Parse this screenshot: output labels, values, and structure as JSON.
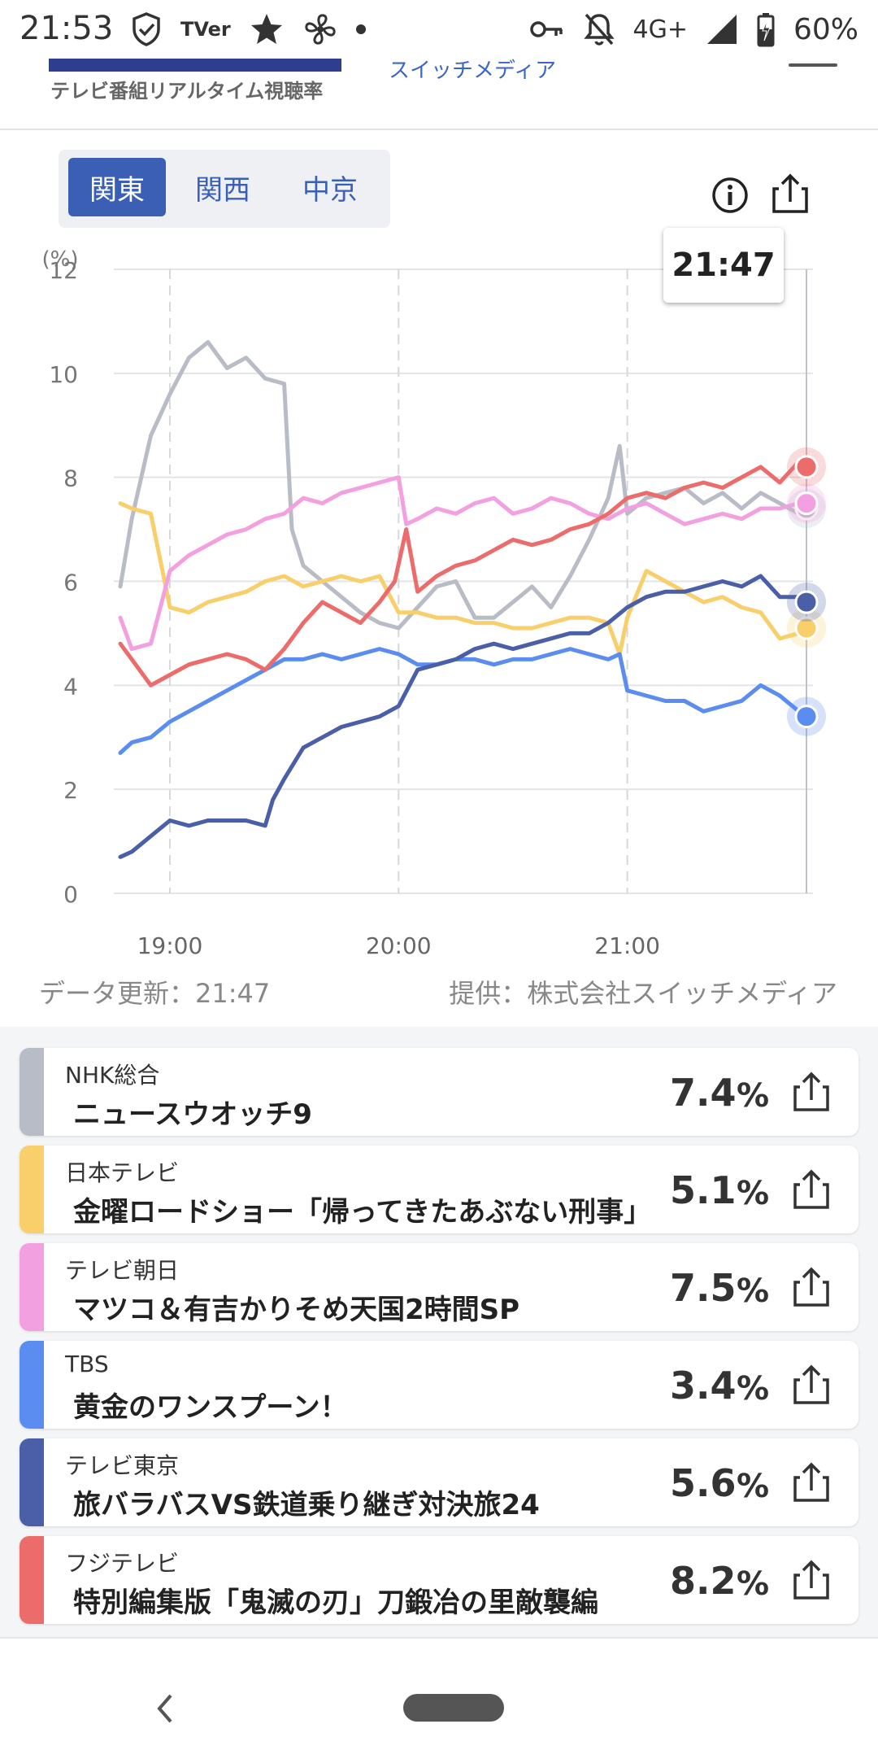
{
  "status_bar": {
    "time": "21:53",
    "tver_label": "TVer",
    "network": "4G+",
    "battery": "60%",
    "icons": [
      "shield-check-icon",
      "tver-icon",
      "star-icon",
      "fan-icon",
      "notification-dot-icon",
      "key-icon",
      "bell-off-icon",
      "signal-icon",
      "battery-charging-icon"
    ]
  },
  "header": {
    "brand_subtitle": "テレビ番組リアルタイム視聴率",
    "brand_right": "スイッチメディア"
  },
  "region_tabs": [
    {
      "label": "関東",
      "active": true
    },
    {
      "label": "関西",
      "active": false
    },
    {
      "label": "中京",
      "active": false
    }
  ],
  "chart": {
    "tooltip_time": "21:47",
    "y_unit": "(%)"
  },
  "chart_data": {
    "type": "line",
    "y_unit": "(%)",
    "ylim": [
      0,
      12
    ],
    "yticks": [
      "0",
      "2",
      "4",
      "6",
      "8",
      "10",
      "12"
    ],
    "xticks": [
      "19:00",
      "20:00",
      "21:00"
    ],
    "x_range": [
      "18:47",
      "21:47"
    ],
    "grid": true,
    "series": [
      {
        "name": "NHK総合",
        "color": "#b8bcc6",
        "x": [
          "18:47",
          "18:50",
          "18:55",
          "19:00",
          "19:05",
          "19:10",
          "19:15",
          "19:20",
          "19:25",
          "19:30",
          "19:32",
          "19:35",
          "19:40",
          "19:45",
          "19:50",
          "19:55",
          "20:00",
          "20:05",
          "20:10",
          "20:15",
          "20:20",
          "20:25",
          "20:30",
          "20:35",
          "20:40",
          "20:45",
          "20:50",
          "20:55",
          "20:58",
          "21:00",
          "21:05",
          "21:10",
          "21:15",
          "21:20",
          "21:25",
          "21:30",
          "21:35",
          "21:40",
          "21:45",
          "21:47"
        ],
        "y": [
          5.9,
          7.2,
          8.8,
          9.6,
          10.3,
          10.6,
          10.1,
          10.3,
          9.9,
          9.8,
          7.0,
          6.3,
          6.0,
          5.7,
          5.4,
          5.2,
          5.1,
          5.5,
          5.9,
          6.0,
          5.3,
          5.3,
          5.6,
          5.9,
          5.5,
          6.1,
          6.8,
          7.6,
          8.6,
          7.3,
          7.6,
          7.7,
          7.8,
          7.5,
          7.7,
          7.4,
          7.7,
          7.5,
          7.3,
          7.4
        ]
      },
      {
        "name": "日本テレビ",
        "color": "#f8cf6b",
        "x": [
          "18:47",
          "18:50",
          "18:55",
          "19:00",
          "19:05",
          "19:10",
          "19:15",
          "19:20",
          "19:25",
          "19:30",
          "19:35",
          "19:40",
          "19:45",
          "19:50",
          "19:55",
          "20:00",
          "20:05",
          "20:10",
          "20:15",
          "20:20",
          "20:25",
          "20:30",
          "20:35",
          "20:40",
          "20:45",
          "20:50",
          "20:55",
          "20:58",
          "21:00",
          "21:05",
          "21:10",
          "21:15",
          "21:20",
          "21:25",
          "21:30",
          "21:35",
          "21:40",
          "21:45",
          "21:47"
        ],
        "y": [
          7.5,
          7.4,
          7.3,
          5.5,
          5.4,
          5.6,
          5.7,
          5.8,
          6.0,
          6.1,
          5.9,
          6.0,
          6.1,
          6.0,
          6.1,
          5.4,
          5.4,
          5.3,
          5.3,
          5.2,
          5.2,
          5.1,
          5.1,
          5.2,
          5.3,
          5.3,
          5.2,
          4.6,
          5.3,
          6.2,
          6.0,
          5.8,
          5.6,
          5.7,
          5.5,
          5.4,
          4.9,
          5.0,
          5.1
        ]
      },
      {
        "name": "テレビ朝日",
        "color": "#f3a0e0",
        "x": [
          "18:47",
          "18:50",
          "18:55",
          "19:00",
          "19:05",
          "19:10",
          "19:15",
          "19:20",
          "19:25",
          "19:30",
          "19:35",
          "19:40",
          "19:45",
          "19:50",
          "19:55",
          "20:00",
          "20:02",
          "20:05",
          "20:10",
          "20:15",
          "20:20",
          "20:25",
          "20:30",
          "20:35",
          "20:40",
          "20:45",
          "20:50",
          "20:55",
          "21:00",
          "21:05",
          "21:10",
          "21:15",
          "21:20",
          "21:25",
          "21:30",
          "21:35",
          "21:40",
          "21:45",
          "21:47"
        ],
        "y": [
          5.3,
          4.7,
          4.8,
          6.2,
          6.5,
          6.7,
          6.9,
          7.0,
          7.2,
          7.3,
          7.6,
          7.5,
          7.7,
          7.8,
          7.9,
          8.0,
          7.1,
          7.2,
          7.4,
          7.3,
          7.5,
          7.6,
          7.3,
          7.4,
          7.6,
          7.5,
          7.3,
          7.2,
          7.4,
          7.5,
          7.3,
          7.1,
          7.2,
          7.3,
          7.2,
          7.4,
          7.4,
          7.5,
          7.5
        ]
      },
      {
        "name": "TBS",
        "color": "#5b8df0",
        "x": [
          "18:47",
          "18:50",
          "18:55",
          "19:00",
          "19:05",
          "19:10",
          "19:15",
          "19:20",
          "19:25",
          "19:30",
          "19:35",
          "19:40",
          "19:45",
          "19:50",
          "19:55",
          "20:00",
          "20:05",
          "20:10",
          "20:15",
          "20:20",
          "20:25",
          "20:30",
          "20:35",
          "20:40",
          "20:45",
          "20:50",
          "20:55",
          "20:58",
          "21:00",
          "21:05",
          "21:10",
          "21:15",
          "21:20",
          "21:25",
          "21:30",
          "21:35",
          "21:40",
          "21:45",
          "21:47"
        ],
        "y": [
          2.7,
          2.9,
          3.0,
          3.3,
          3.5,
          3.7,
          3.9,
          4.1,
          4.3,
          4.5,
          4.5,
          4.6,
          4.5,
          4.6,
          4.7,
          4.6,
          4.4,
          4.4,
          4.5,
          4.5,
          4.4,
          4.5,
          4.5,
          4.6,
          4.7,
          4.6,
          4.5,
          4.6,
          3.9,
          3.8,
          3.7,
          3.7,
          3.5,
          3.6,
          3.7,
          4.0,
          3.8,
          3.5,
          3.4
        ]
      },
      {
        "name": "テレビ東京",
        "color": "#4a5fa8",
        "x": [
          "18:47",
          "18:50",
          "18:55",
          "19:00",
          "19:05",
          "19:10",
          "19:15",
          "19:20",
          "19:25",
          "19:27",
          "19:30",
          "19:35",
          "19:40",
          "19:45",
          "19:50",
          "19:55",
          "20:00",
          "20:05",
          "20:10",
          "20:15",
          "20:20",
          "20:25",
          "20:30",
          "20:35",
          "20:40",
          "20:45",
          "20:50",
          "20:55",
          "21:00",
          "21:05",
          "21:10",
          "21:15",
          "21:20",
          "21:25",
          "21:30",
          "21:35",
          "21:40",
          "21:45",
          "21:47"
        ],
        "y": [
          0.7,
          0.8,
          1.1,
          1.4,
          1.3,
          1.4,
          1.4,
          1.4,
          1.3,
          1.8,
          2.2,
          2.8,
          3.0,
          3.2,
          3.3,
          3.4,
          3.6,
          4.3,
          4.4,
          4.5,
          4.7,
          4.8,
          4.7,
          4.8,
          4.9,
          5.0,
          5.0,
          5.2,
          5.5,
          5.7,
          5.8,
          5.8,
          5.9,
          6.0,
          5.9,
          6.1,
          5.7,
          5.7,
          5.6
        ]
      },
      {
        "name": "フジテレビ",
        "color": "#ec6b6b",
        "x": [
          "18:47",
          "18:50",
          "18:55",
          "19:00",
          "19:05",
          "19:10",
          "19:15",
          "19:20",
          "19:25",
          "19:30",
          "19:35",
          "19:40",
          "19:45",
          "19:50",
          "19:55",
          "19:59",
          "20:02",
          "20:05",
          "20:10",
          "20:15",
          "20:20",
          "20:25",
          "20:30",
          "20:35",
          "20:40",
          "20:45",
          "20:50",
          "20:55",
          "21:00",
          "21:05",
          "21:10",
          "21:15",
          "21:20",
          "21:25",
          "21:30",
          "21:35",
          "21:40",
          "21:45",
          "21:47"
        ],
        "y": [
          4.8,
          4.5,
          4.0,
          4.2,
          4.4,
          4.5,
          4.6,
          4.5,
          4.3,
          4.7,
          5.2,
          5.6,
          5.4,
          5.2,
          5.6,
          6.0,
          7.0,
          5.8,
          6.1,
          6.3,
          6.4,
          6.6,
          6.8,
          6.7,
          6.8,
          7.0,
          7.1,
          7.3,
          7.6,
          7.7,
          7.6,
          7.8,
          7.9,
          7.8,
          8.0,
          8.2,
          7.9,
          8.3,
          8.2
        ]
      }
    ]
  },
  "meta": {
    "updated": "データ更新：21:47",
    "provider": "提供：株式会社スイッチメディア"
  },
  "ratings": [
    {
      "station": "NHK総合",
      "program": "ニュースウオッチ9",
      "rating": "7.4",
      "unit": "%",
      "color": "#b8bcc6"
    },
    {
      "station": "日本テレビ",
      "program": "金曜ロードショー「帰ってきたあぶない刑事」",
      "rating": "5.1",
      "unit": "%",
      "color": "#f8cf6b"
    },
    {
      "station": "テレビ朝日",
      "program": "マツコ＆有吉かりそめ天国2時間SP",
      "rating": "7.5",
      "unit": "%",
      "color": "#f3a0e0"
    },
    {
      "station": "TBS",
      "program": "黄金のワンスプーン！",
      "rating": "3.4",
      "unit": "%",
      "color": "#5b8df0"
    },
    {
      "station": "テレビ東京",
      "program": "旅バラバスVS鉄道乗り継ぎ対決旅24",
      "rating": "5.6",
      "unit": "%",
      "color": "#4a5fa8"
    },
    {
      "station": "フジテレビ",
      "program": "特別編集版「鬼滅の刃」刀鍛冶の里敵襲編",
      "rating": "8.2",
      "unit": "%",
      "color": "#ec6b6b"
    }
  ],
  "colors": {
    "accent": "#3b5fb5",
    "tab_bg": "#eef0f3",
    "list_bg": "#f4f5f7"
  }
}
